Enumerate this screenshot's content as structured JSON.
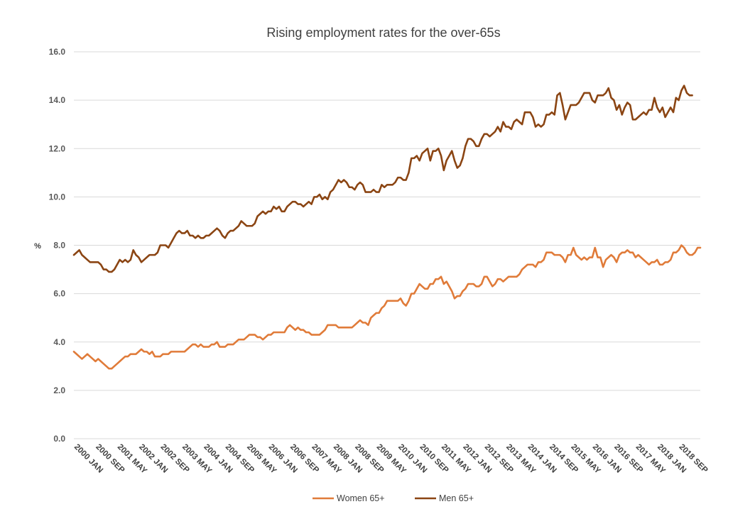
{
  "chart_data": {
    "type": "line",
    "title": "Rising employment rates for the over-65s",
    "ylabel": "%",
    "xlabel": "",
    "ylim": [
      0,
      16
    ],
    "yticks": [
      "0.0",
      "2.0",
      "4.0",
      "6.0",
      "8.0",
      "10.0",
      "12.0",
      "14.0",
      "16.0"
    ],
    "grid": true,
    "legend_position": "bottom",
    "x_labels": [
      "2000 JAN",
      "2000 SEP",
      "2001 MAY",
      "2002 JAN",
      "2002 SEP",
      "2003 MAY",
      "2004 JAN",
      "2004 SEP",
      "2005 MAY",
      "2006 JAN",
      "2006 SEP",
      "2007 MAY",
      "2008 JAN",
      "2008 SEP",
      "2009 MAY",
      "2010 JAN",
      "2010 SEP",
      "2011 MAY",
      "2012 JAN",
      "2012 SEP",
      "2013 MAY",
      "2014 JAN",
      "2014 SEP",
      "2015 MAY",
      "2016 JAN",
      "2016 SEP",
      "2017 MAY",
      "2018 JAN",
      "2018 SEP"
    ],
    "x_label_step_months": 8,
    "x_start": "2000 JAN",
    "series": [
      {
        "name": "Women 65+",
        "color": "#e07b39",
        "values": [
          3.6,
          3.5,
          3.4,
          3.3,
          3.4,
          3.5,
          3.4,
          3.3,
          3.2,
          3.3,
          3.2,
          3.1,
          3.0,
          2.9,
          2.9,
          3.0,
          3.1,
          3.2,
          3.3,
          3.4,
          3.4,
          3.5,
          3.5,
          3.5,
          3.6,
          3.7,
          3.6,
          3.6,
          3.5,
          3.6,
          3.4,
          3.4,
          3.4,
          3.5,
          3.5,
          3.5,
          3.6,
          3.6,
          3.6,
          3.6,
          3.6,
          3.6,
          3.7,
          3.8,
          3.9,
          3.9,
          3.8,
          3.9,
          3.8,
          3.8,
          3.8,
          3.9,
          3.9,
          4.0,
          3.8,
          3.8,
          3.8,
          3.9,
          3.9,
          3.9,
          4.0,
          4.1,
          4.1,
          4.1,
          4.2,
          4.3,
          4.3,
          4.3,
          4.2,
          4.2,
          4.1,
          4.2,
          4.3,
          4.3,
          4.4,
          4.4,
          4.4,
          4.4,
          4.4,
          4.6,
          4.7,
          4.6,
          4.5,
          4.6,
          4.5,
          4.5,
          4.4,
          4.4,
          4.3,
          4.3,
          4.3,
          4.3,
          4.4,
          4.5,
          4.7,
          4.7,
          4.7,
          4.7,
          4.6,
          4.6,
          4.6,
          4.6,
          4.6,
          4.6,
          4.7,
          4.8,
          4.9,
          4.8,
          4.8,
          4.7,
          5.0,
          5.1,
          5.2,
          5.2,
          5.4,
          5.5,
          5.7,
          5.7,
          5.7,
          5.7,
          5.7,
          5.8,
          5.6,
          5.5,
          5.7,
          6.0,
          6.0,
          6.2,
          6.4,
          6.3,
          6.2,
          6.2,
          6.4,
          6.4,
          6.6,
          6.6,
          6.7,
          6.4,
          6.5,
          6.3,
          6.1,
          5.8,
          5.9,
          5.9,
          6.1,
          6.2,
          6.4,
          6.4,
          6.4,
          6.3,
          6.3,
          6.4,
          6.7,
          6.7,
          6.5,
          6.3,
          6.4,
          6.6,
          6.6,
          6.5,
          6.6,
          6.7,
          6.7,
          6.7,
          6.7,
          6.8,
          7.0,
          7.1,
          7.2,
          7.2,
          7.2,
          7.1,
          7.3,
          7.3,
          7.4,
          7.7,
          7.7,
          7.7,
          7.6,
          7.6,
          7.6,
          7.5,
          7.3,
          7.6,
          7.6,
          7.9,
          7.6,
          7.5,
          7.4,
          7.5,
          7.4,
          7.5,
          7.5,
          7.9,
          7.5,
          7.5,
          7.1,
          7.4,
          7.5,
          7.6,
          7.5,
          7.3,
          7.6,
          7.7,
          7.7,
          7.8,
          7.7,
          7.7,
          7.5,
          7.6,
          7.5,
          7.4,
          7.3,
          7.2,
          7.3,
          7.3,
          7.4,
          7.2,
          7.2,
          7.3,
          7.3,
          7.4,
          7.7,
          7.7,
          7.8,
          8.0,
          7.9,
          7.7,
          7.6,
          7.6,
          7.7,
          7.9,
          7.9
        ]
      },
      {
        "name": "Men 65+",
        "color": "#8b4513",
        "values": [
          7.6,
          7.7,
          7.8,
          7.6,
          7.5,
          7.4,
          7.3,
          7.3,
          7.3,
          7.3,
          7.2,
          7.0,
          7.0,
          6.9,
          6.9,
          7.0,
          7.2,
          7.4,
          7.3,
          7.4,
          7.3,
          7.4,
          7.8,
          7.6,
          7.5,
          7.3,
          7.4,
          7.5,
          7.6,
          7.6,
          7.6,
          7.7,
          8.0,
          8.0,
          8.0,
          7.9,
          8.1,
          8.3,
          8.5,
          8.6,
          8.5,
          8.5,
          8.6,
          8.4,
          8.4,
          8.3,
          8.4,
          8.3,
          8.3,
          8.4,
          8.4,
          8.5,
          8.6,
          8.7,
          8.6,
          8.4,
          8.3,
          8.5,
          8.6,
          8.6,
          8.7,
          8.8,
          9.0,
          8.9,
          8.8,
          8.8,
          8.8,
          8.9,
          9.2,
          9.3,
          9.4,
          9.3,
          9.4,
          9.4,
          9.6,
          9.5,
          9.6,
          9.4,
          9.4,
          9.6,
          9.7,
          9.8,
          9.8,
          9.7,
          9.7,
          9.6,
          9.7,
          9.8,
          9.7,
          10.0,
          10.0,
          10.1,
          9.9,
          10.0,
          9.9,
          10.2,
          10.3,
          10.5,
          10.7,
          10.6,
          10.7,
          10.6,
          10.4,
          10.4,
          10.3,
          10.5,
          10.6,
          10.5,
          10.2,
          10.2,
          10.2,
          10.3,
          10.2,
          10.2,
          10.5,
          10.4,
          10.5,
          10.5,
          10.5,
          10.6,
          10.8,
          10.8,
          10.7,
          10.7,
          11.0,
          11.6,
          11.6,
          11.7,
          11.5,
          11.8,
          11.9,
          12.0,
          11.5,
          11.9,
          11.9,
          12.0,
          11.7,
          11.1,
          11.5,
          11.7,
          11.9,
          11.5,
          11.2,
          11.3,
          11.6,
          12.1,
          12.4,
          12.4,
          12.3,
          12.1,
          12.1,
          12.4,
          12.6,
          12.6,
          12.5,
          12.6,
          12.7,
          12.9,
          12.7,
          13.1,
          12.9,
          12.9,
          12.8,
          13.1,
          13.2,
          13.1,
          13.0,
          13.5,
          13.5,
          13.5,
          13.3,
          12.9,
          13.0,
          12.9,
          13.0,
          13.4,
          13.4,
          13.5,
          13.4,
          14.2,
          14.3,
          13.8,
          13.2,
          13.5,
          13.8,
          13.8,
          13.8,
          13.9,
          14.1,
          14.3,
          14.3,
          14.3,
          14.0,
          13.9,
          14.2,
          14.2,
          14.2,
          14.3,
          14.5,
          14.1,
          14.0,
          13.6,
          13.8,
          13.4,
          13.7,
          13.9,
          13.8,
          13.2,
          13.2,
          13.3,
          13.4,
          13.5,
          13.4,
          13.6,
          13.6,
          14.1,
          13.7,
          13.5,
          13.7,
          13.3,
          13.5,
          13.7,
          13.5,
          14.1,
          14.0,
          14.4,
          14.6,
          14.3,
          14.2,
          14.2
        ]
      }
    ]
  }
}
